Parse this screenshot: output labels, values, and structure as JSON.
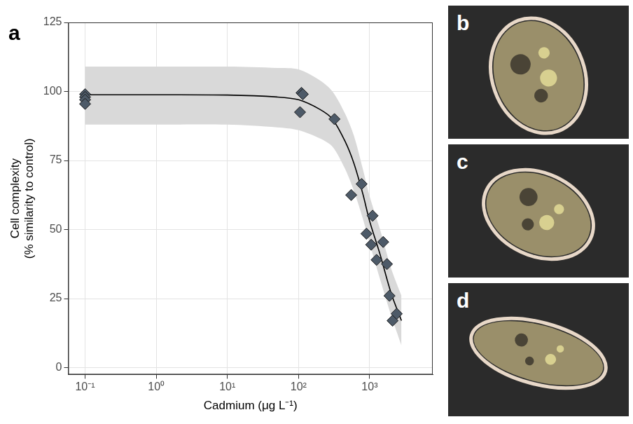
{
  "chart_data": {
    "type": "scatter",
    "panel_label": "a",
    "x_label": "Cadmium (μg L⁻¹)",
    "y_label": [
      "Cell complexity",
      "(% similarity to control)"
    ],
    "log": "x",
    "grid": true,
    "xlim": [
      0.058,
      7700
    ],
    "xticks": [
      {
        "value": 0.1,
        "label": "10⁻¹"
      },
      {
        "value": 1,
        "label": "10⁰"
      },
      {
        "value": 10,
        "label": "10¹"
      },
      {
        "value": 100,
        "label": "10²"
      },
      {
        "value": 1000,
        "label": "10³"
      }
    ],
    "ylim": [
      -2.5,
      125
    ],
    "yticks": [
      0,
      25,
      50,
      75,
      100,
      125
    ],
    "series": [
      {
        "type": "band",
        "color": "#d9d9d9",
        "x": [
          0.1,
          1,
          10,
          50,
          100,
          200,
          300,
          450,
          600,
          800,
          1000,
          1400,
          2000,
          2800
        ],
        "lower": [
          88,
          88,
          88,
          87,
          86,
          83,
          80,
          72,
          64,
          54,
          45,
          32,
          19,
          8
        ],
        "upper": [
          109,
          109,
          109,
          108.5,
          108,
          104,
          100,
          92,
          84,
          72,
          62,
          50,
          36,
          26
        ]
      },
      {
        "type": "line",
        "color": "#000000",
        "line_style": "solid",
        "x": [
          0.1,
          1,
          10,
          50,
          100,
          200,
          300,
          450,
          600,
          800,
          1000,
          1400,
          2000,
          2800
        ],
        "values": [
          98.8,
          98.8,
          98.7,
          98,
          97,
          93.5,
          90,
          82,
          74,
          63,
          53,
          41,
          27,
          17
        ]
      },
      {
        "type": "scatter",
        "color": "#4d5a68",
        "marker": "diamond",
        "x": [
          0.1,
          0.1,
          0.1,
          0.1,
          110,
          115,
          105,
          320,
          550,
          770,
          900,
          1050,
          1100,
          1250,
          1550,
          1750,
          1900,
          2100,
          2400
        ],
        "values": [
          99,
          98,
          97,
          95.5,
          99.5,
          99,
          92.5,
          90,
          62.5,
          66.5,
          48.5,
          44.5,
          55,
          39,
          45.5,
          37.5,
          26,
          17,
          19.5
        ]
      }
    ]
  },
  "images": [
    {
      "panel_label": "b"
    },
    {
      "panel_label": "c"
    },
    {
      "panel_label": "d"
    }
  ]
}
